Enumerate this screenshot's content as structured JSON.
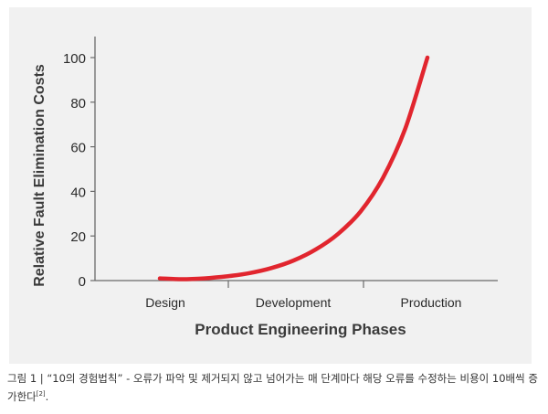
{
  "chart_data": {
    "type": "line",
    "xlabel": "Product Engineering Phases",
    "ylabel": "Relative Fault Elimination Costs",
    "categories": [
      "Design",
      "Development",
      "Production"
    ],
    "yticks": [
      0,
      20,
      40,
      60,
      80,
      100
    ],
    "ylim": [
      0,
      110
    ],
    "grid": false,
    "series": [
      {
        "color": "#e1252e",
        "x": [
          0.0,
          0.25,
          0.5,
          0.75,
          1.0,
          1.25,
          1.5,
          1.75,
          2.0,
          2.25,
          2.5,
          2.75,
          3.0
        ],
        "values": [
          1.0,
          0.6,
          1.0,
          1.9,
          3.3,
          5.6,
          9.0,
          14.0,
          21.0,
          31.0,
          46.0,
          68.0,
          100.0
        ]
      }
    ]
  },
  "caption": {
    "main": "그림 1 | “10의 경험법칙” - 오류가 파악 및 제거되지 않고 넘어가는 매 단계마다 해당 오류를 수정하는 비용이 10배씩 증가한다",
    "ref": "[2]",
    "end": "."
  }
}
